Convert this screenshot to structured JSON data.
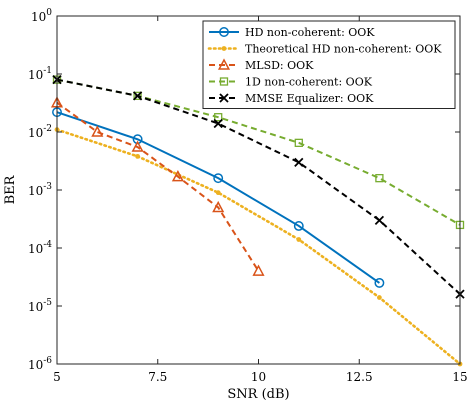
{
  "chart_data": {
    "type": "line",
    "xlabel": "SNR (dB)",
    "ylabel": "BER",
    "xlim": [
      5,
      15
    ],
    "ylim": [
      1e-06,
      1
    ],
    "y_scale": "log",
    "grid": false,
    "legend_position": "top-right",
    "x_ticks": [
      5,
      7.5,
      10,
      12.5,
      15
    ],
    "x_tick_labels": [
      "5",
      "7.5",
      "10",
      "12.5",
      "15"
    ],
    "y_ticks": [
      1e-06,
      1e-05,
      0.0001,
      0.001,
      0.01,
      0.1,
      1
    ],
    "y_tick_labels": [
      {
        "base": "10",
        "exp": "-6"
      },
      {
        "base": "10",
        "exp": "-5"
      },
      {
        "base": "10",
        "exp": "-4"
      },
      {
        "base": "10",
        "exp": "-3"
      },
      {
        "base": "10",
        "exp": "-2"
      },
      {
        "base": "10",
        "exp": "-1"
      },
      {
        "base": "10",
        "exp": "0"
      }
    ],
    "series": [
      {
        "name": "HD non-coherent: OOK",
        "color": "#0072BD",
        "line_style": "solid",
        "marker": "circle",
        "x": [
          5,
          7,
          9,
          11,
          13
        ],
        "y": [
          0.022,
          0.0075,
          0.0016,
          0.00024,
          2.5e-05
        ]
      },
      {
        "name": "Theoretical HD non-coherent: OOK",
        "color": "#EDB120",
        "line_style": "dotted",
        "marker": "dot",
        "x": [
          5,
          7,
          9,
          11,
          13,
          15
        ],
        "y": [
          0.011,
          0.0038,
          0.0009,
          0.00014,
          1.4e-05,
          1e-06
        ]
      },
      {
        "name": "MLSD: OOK",
        "color": "#D95319",
        "line_style": "dashed",
        "marker": "triangle",
        "x": [
          5,
          6,
          7,
          8,
          9,
          10
        ],
        "y": [
          0.032,
          0.01,
          0.0055,
          0.0017,
          0.0005,
          4e-05
        ]
      },
      {
        "name": "1D non-coherent: OOK",
        "color": "#77AC30",
        "line_style": "dashed",
        "marker": "square",
        "x": [
          5,
          7,
          9,
          11,
          13,
          15
        ],
        "y": [
          0.08,
          0.042,
          0.018,
          0.0065,
          0.0016,
          0.00025
        ]
      },
      {
        "name": "MMSE Equalizer: OOK",
        "color": "#000000",
        "line_style": "dashed",
        "marker": "x",
        "x": [
          5,
          7,
          9,
          11,
          13,
          15
        ],
        "y": [
          0.08,
          0.042,
          0.014,
          0.003,
          0.0003,
          1.6e-05
        ]
      }
    ]
  }
}
